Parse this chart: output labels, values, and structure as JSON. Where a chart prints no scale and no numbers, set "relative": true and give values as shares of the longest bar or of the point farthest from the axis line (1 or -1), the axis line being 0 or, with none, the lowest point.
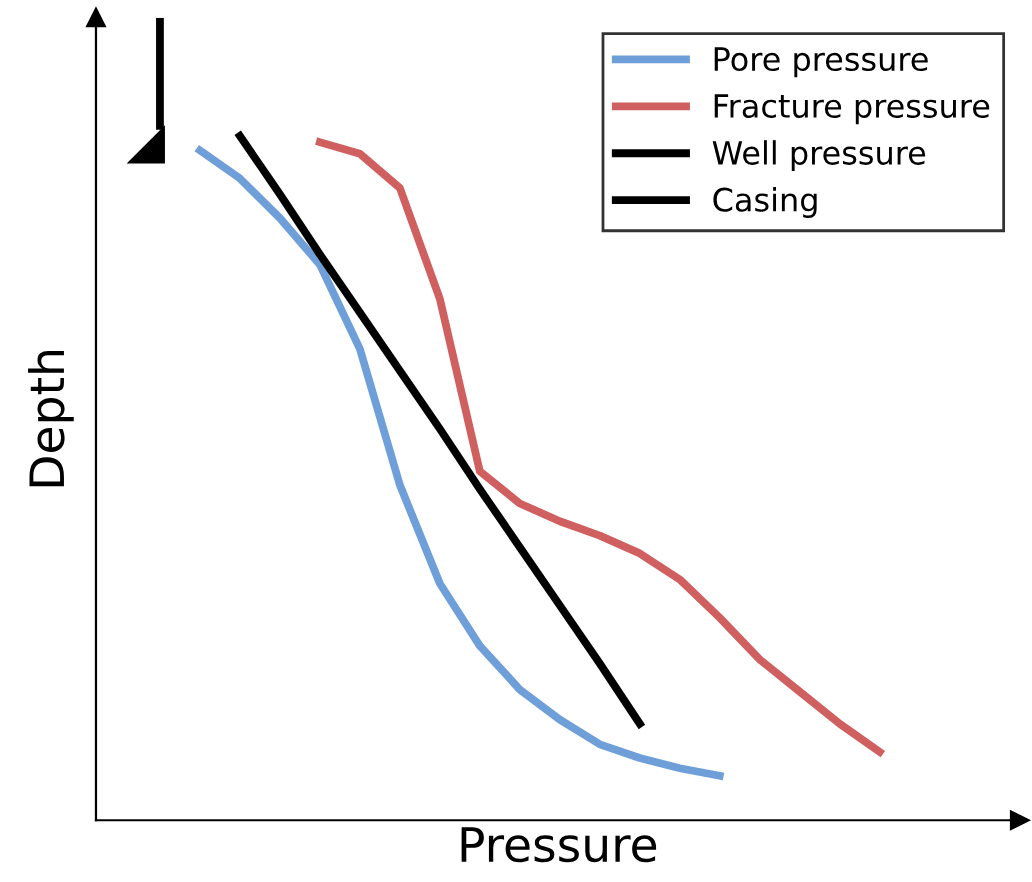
{
  "chart_data": {
    "type": "line",
    "relative": true,
    "xlabel": "Pressure",
    "ylabel": "Depth",
    "legend": "top right",
    "tick_labels": false,
    "categories": [
      null,
      null,
      null,
      null,
      null,
      null,
      null,
      null,
      null,
      null,
      null,
      null,
      null,
      null,
      null,
      null,
      null,
      null,
      null,
      null
    ],
    "series": [
      {
        "name": "Pore pressure",
        "color": "#6f9fd8",
        "values": [
          null,
          0.979,
          0.938,
          0.88,
          0.812,
          0.689,
          0.49,
          0.346,
          0.255,
          0.191,
          0.147,
          0.111,
          0.091,
          0.076,
          0.065,
          null,
          null,
          null,
          null,
          null
        ]
      },
      {
        "name": "Fracture pressure",
        "color": "#d06060",
        "values": [
          null,
          null,
          null,
          null,
          0.991,
          0.974,
          0.924,
          0.762,
          0.51,
          0.463,
          0.437,
          0.416,
          0.39,
          0.352,
          0.296,
          0.235,
          0.188,
          0.141,
          0.1,
          null
        ]
      },
      {
        "name": "Well pressure",
        "color": "#000000",
        "values": [
          null,
          null,
          1.0,
          0.915,
          0.827,
          0.742,
          0.657,
          0.572,
          0.484,
          0.399,
          0.314,
          0.229,
          0.141,
          null,
          null,
          null,
          null,
          null,
          null,
          null
        ]
      }
    ],
    "annotations": [
      "Casing"
    ]
  }
}
